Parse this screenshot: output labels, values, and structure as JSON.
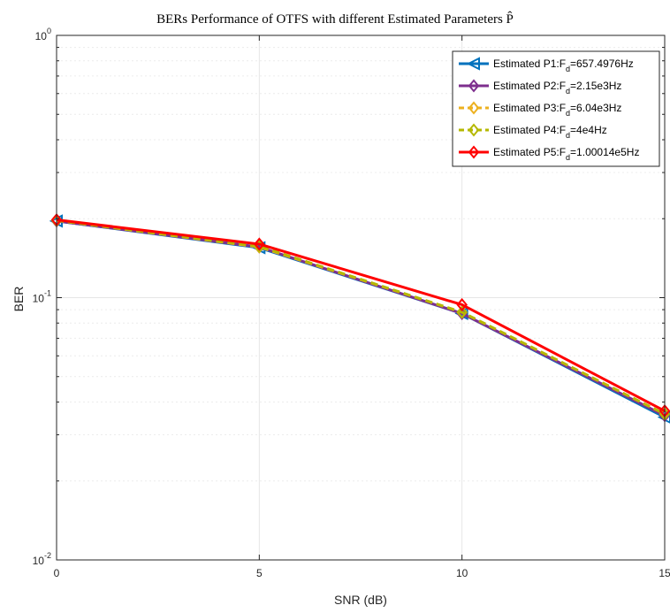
{
  "chart_data": {
    "type": "line",
    "title": "BERs Performance of OTFS with different Estimated Parameters P̂",
    "xlabel": "SNR (dB)",
    "ylabel": "BER",
    "yscale": "log",
    "xlim": [
      0,
      15
    ],
    "ylim": [
      0.01,
      1
    ],
    "grid": true,
    "legend_position": "top-right",
    "x": [
      0,
      5,
      10,
      15
    ],
    "x_tick_labels": [
      "0",
      "5",
      "10",
      "15"
    ],
    "y_tick_labels": [
      {
        "base": "10",
        "exp": "0"
      },
      {
        "base": "10",
        "exp": "-1"
      },
      {
        "base": "10",
        "exp": "-2"
      }
    ],
    "series": [
      {
        "name": "Estimated P1:F_d=657.4976Hz",
        "label_main": "Estimated P1:F",
        "label_sub": "d",
        "label_tail": "=657.4976Hz",
        "color": "#0072BD",
        "marker": "triangle-left",
        "dashed": false,
        "values": [
          0.196,
          0.155,
          0.087,
          0.035
        ]
      },
      {
        "name": "Estimated P2:F_d=2.15e3Hz",
        "label_main": "Estimated P2:F",
        "label_sub": "d",
        "label_tail": "=2.15e3Hz",
        "color": "#7E2F8E",
        "marker": "diamond",
        "dashed": false,
        "values": [
          0.196,
          0.156,
          0.087,
          0.0355
        ]
      },
      {
        "name": "Estimated P3:F_d=6.04e3Hz",
        "label_main": "Estimated P3:F",
        "label_sub": "d",
        "label_tail": "=6.04e3Hz",
        "color": "#EDB120",
        "marker": "diamond",
        "dashed": true,
        "values": [
          0.197,
          0.156,
          0.088,
          0.036
        ]
      },
      {
        "name": "Estimated P4:F_d=4e4Hz",
        "label_main": "Estimated P4:F",
        "label_sub": "d",
        "label_tail": "=4e4Hz",
        "color": "#B5B800",
        "marker": "diamond",
        "dashed": true,
        "values": [
          0.197,
          0.157,
          0.088,
          0.036
        ]
      },
      {
        "name": "Estimated P5:F_d=1.00014e5Hz",
        "label_main": "Estimated P5:F",
        "label_sub": "d",
        "label_tail": "=1.00014e5Hz",
        "color": "#FF0000",
        "marker": "diamond",
        "dashed": false,
        "values": [
          0.198,
          0.16,
          0.094,
          0.037
        ]
      }
    ]
  }
}
